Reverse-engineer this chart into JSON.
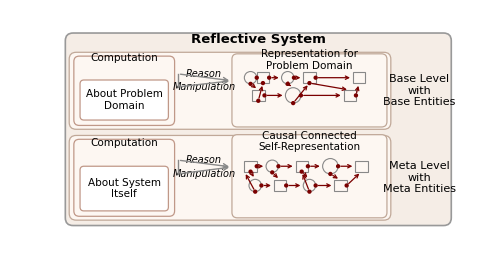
{
  "title": "Reflective System",
  "title_fontsize": 9.5,
  "bg_color": "#ffffff",
  "outer_edge": "#999999",
  "outer_face": "#f5ede6",
  "row_edge": "#c0a898",
  "row_face": "#fdf7f2",
  "comp_outer_edge": "#c09888",
  "comp_inner_edge": "#c09888",
  "comp_inner_face": "#ffffff",
  "repr_edge": "#c0a898",
  "repr_face": "#fdf7f2",
  "dark_red": "#7a0000",
  "arrow_col": "#888888",
  "node_edge": "#888888",
  "node_face": "#fdf7f2",
  "top": {
    "comp1": "Computation",
    "comp2": "About Problem\nDomain",
    "reason": "Reason",
    "manip": "Manipulation",
    "repr_title": "Representation for\nProblem Domain",
    "side": "Base Level\nwith\nBase Entities"
  },
  "bot": {
    "comp1": "Computation",
    "comp2": "About System\nItself",
    "reason": "Reason",
    "manip": "Manipulation",
    "repr_title": "Causal Connected\nSelf-Representation",
    "side": "Meta Level\nwith\nMeta Entities"
  }
}
